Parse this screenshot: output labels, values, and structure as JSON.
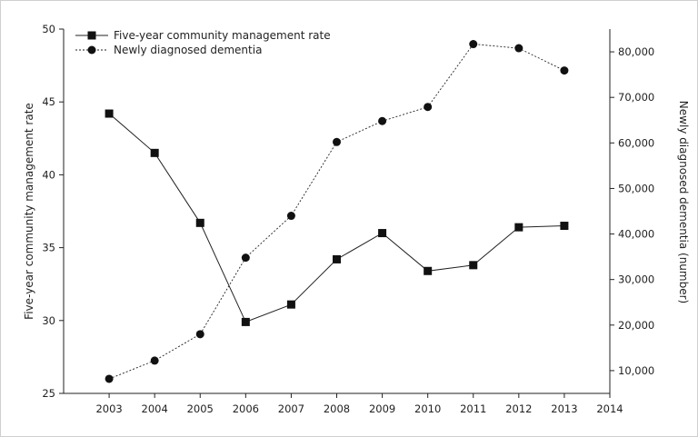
{
  "chart_data": {
    "type": "line",
    "title": "",
    "x": [
      2003,
      2004,
      2005,
      2006,
      2007,
      2008,
      2009,
      2010,
      2011,
      2012,
      2013
    ],
    "x_ticks": [
      "2003",
      "2004",
      "2005",
      "2006",
      "2007",
      "2008",
      "2009",
      "2010",
      "2011",
      "2012",
      "2013",
      "2014"
    ],
    "xlim": [
      2002,
      2014
    ],
    "ylabel_left": "Five-year community management rate",
    "ylabel_right": "Newly diagnosed dementia (number)",
    "ylim_left": [
      25,
      50
    ],
    "ylim_right": [
      5000,
      85000
    ],
    "yticks_left": [
      "25",
      "30",
      "35",
      "40",
      "45",
      "50"
    ],
    "yticks_right": [
      "10,000",
      "20,000",
      "30,000",
      "40,000",
      "50,000",
      "60,000",
      "70,000",
      "80,000"
    ],
    "series": [
      {
        "name": "Five-year community management rate",
        "axis": "left",
        "marker": "square",
        "line": "solid",
        "values": [
          44.2,
          41.5,
          36.7,
          29.9,
          31.1,
          34.2,
          36.0,
          33.4,
          33.8,
          36.4,
          36.5
        ]
      },
      {
        "name": "Newly diagnosed dementia",
        "axis": "right",
        "marker": "circle",
        "line": "dotted",
        "values": [
          8200,
          12200,
          18000,
          34800,
          44000,
          60200,
          64800,
          67900,
          81700,
          80800,
          75900
        ]
      }
    ],
    "legend_position": "top-left",
    "grid": false
  }
}
